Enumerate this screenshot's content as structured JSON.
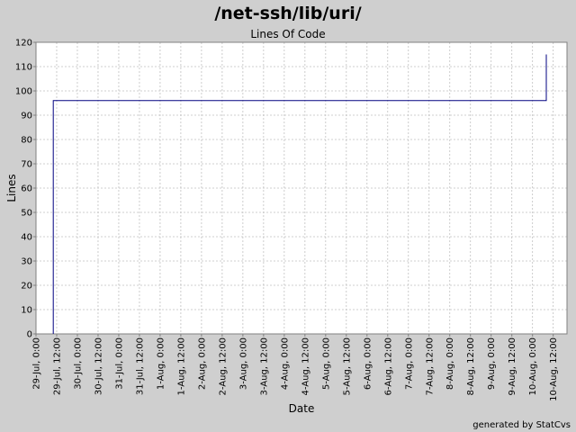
{
  "chart_data": {
    "type": "line",
    "title": "/net-ssh/lib/uri/",
    "subtitle": "Lines Of Code",
    "xlabel": "Date",
    "ylabel": "Lines",
    "ylim": [
      0,
      120
    ],
    "yticks": [
      0,
      10,
      20,
      30,
      40,
      50,
      60,
      70,
      80,
      90,
      100,
      110,
      120
    ],
    "xlim": [
      "2008-07-29 00:00",
      "2008-08-10 20:00"
    ],
    "xtick_labels": [
      "29-Jul, 0:00",
      "29-Jul, 12:00",
      "30-Jul, 0:00",
      "30-Jul, 12:00",
      "31-Jul, 0:00",
      "31-Jul, 12:00",
      "1-Aug, 0:00",
      "1-Aug, 12:00",
      "2-Aug, 0:00",
      "2-Aug, 12:00",
      "3-Aug, 0:00",
      "3-Aug, 12:00",
      "4-Aug, 0:00",
      "4-Aug, 12:00",
      "5-Aug, 0:00",
      "5-Aug, 12:00",
      "6-Aug, 0:00",
      "6-Aug, 12:00",
      "7-Aug, 0:00",
      "7-Aug, 12:00",
      "8-Aug, 0:00",
      "8-Aug, 12:00",
      "9-Aug, 0:00",
      "9-Aug, 12:00",
      "10-Aug, 0:00",
      "10-Aug, 12:00"
    ],
    "grid": true,
    "step": true,
    "series": [
      {
        "color": "#000080",
        "points": [
          {
            "x": "2008-07-29 10:00",
            "y": 0
          },
          {
            "x": "2008-07-29 10:00",
            "y": 96
          },
          {
            "x": "2008-08-10 08:00",
            "y": 96
          },
          {
            "x": "2008-08-10 08:00",
            "y": 115
          }
        ]
      }
    ]
  },
  "footer": "generated by StatCvs"
}
